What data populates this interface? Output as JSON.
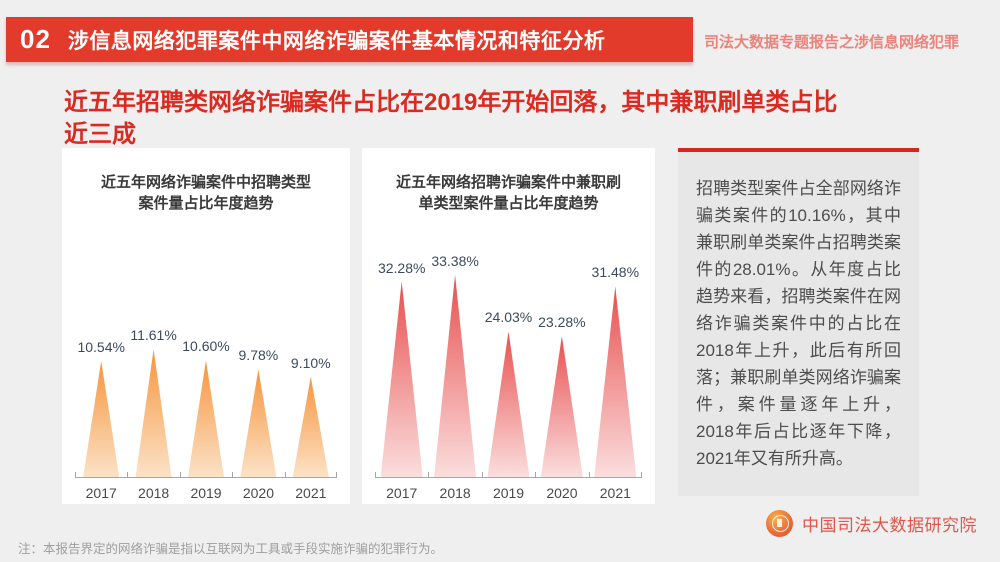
{
  "banner": {
    "number": "02",
    "title": "涉信息网络犯罪案件中网络诈骗案件基本情况和特征分析",
    "side_note": "司法大数据专题报告之涉信息网络犯罪"
  },
  "headline": {
    "full": "近五年招聘类网络诈骗案件占比在2019年开始回落，其中兼职刷单类占比近三成",
    "line1": "近五年招聘类网络诈骗案件占比在2019年开始回落，其中兼职刷单类占比",
    "line2": "近三成"
  },
  "chart_data": [
    {
      "type": "bar",
      "title": "近五年网络诈骗案件中招聘类型案件量占比年度趋势",
      "title_lines": [
        "近五年网络诈骗案件中招聘类型",
        "案件量占比年度趋势"
      ],
      "categories": [
        "2017",
        "2018",
        "2019",
        "2020",
        "2021"
      ],
      "values": [
        10.54,
        11.61,
        10.6,
        9.78,
        9.1
      ],
      "labels": [
        "10.54%",
        "11.61%",
        "10.60%",
        "9.78%",
        "9.10%"
      ],
      "xlabel": "",
      "ylabel": "",
      "ylim": [
        0,
        12
      ],
      "grid": false,
      "legend": "none",
      "colors": {
        "top": "#F6953E",
        "bottom": "#FBE2C6"
      }
    },
    {
      "type": "bar",
      "title": "近五年网络招聘诈骗案件中兼职刷单类型案件量占比年度趋势",
      "title_lines": [
        "近五年网络招聘诈骗案件中兼职刷",
        "单类型案件量占比年度趋势"
      ],
      "categories": [
        "2017",
        "2018",
        "2019",
        "2020",
        "2021"
      ],
      "values": [
        32.28,
        33.38,
        24.03,
        23.28,
        31.48
      ],
      "labels": [
        "32.28%",
        "33.38%",
        "24.03%",
        "23.28%",
        "31.48%"
      ],
      "xlabel": "",
      "ylabel": "",
      "ylim": [
        0,
        35
      ],
      "grid": false,
      "legend": "none",
      "colors": {
        "top": "#E85050",
        "bottom": "#FADEDD"
      }
    }
  ],
  "side_panel": {
    "text": "招聘类型案件占全部网络诈骗类案件的10.16%，其中兼职刷单类案件占招聘类案件的28.01%。从年度占比趋势来看，招聘类案件在网络诈骗类案件中的占比在2018年上升，此后有所回落；兼职刷单类网络诈骗案件，案件量逐年上升，2018年后占比逐年下降，2021年又有所升高。"
  },
  "footer": {
    "note": "注：本报告界定的网络诈骗是指以互联网为工具或手段实施诈骗的犯罪行为。",
    "org": "中国司法大数据研究院"
  },
  "colors": {
    "banner_red": "#E23B2B",
    "headline_red": "#D92B21",
    "panel_accent_red": "#D9251C",
    "panel_bg": "#E7E7E7",
    "page_bg": "#EFEFEF",
    "label_navy": "#3D4A5E",
    "org_red": "#E0564A"
  }
}
